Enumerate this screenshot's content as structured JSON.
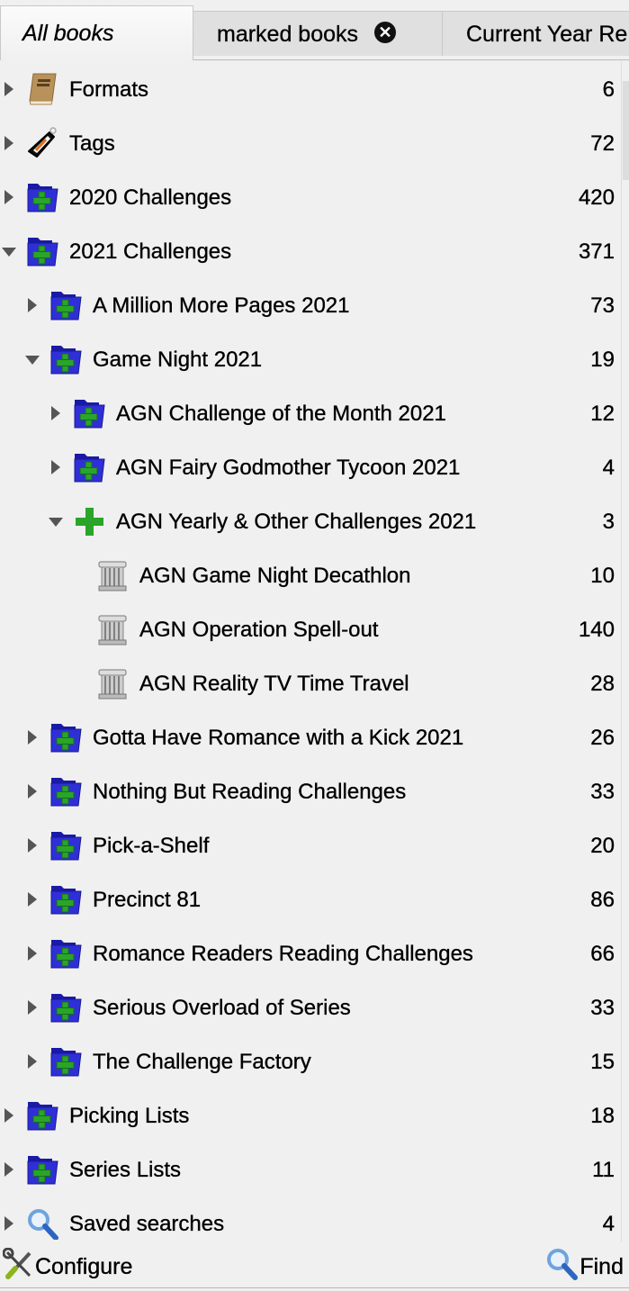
{
  "tabs": [
    {
      "label": "All books",
      "active": true
    },
    {
      "label": "marked books",
      "closable": true
    },
    {
      "label": "Current Year Re"
    }
  ],
  "tree": [
    {
      "label": "Formats",
      "count": "6",
      "level": 0,
      "state": "closed",
      "icon": "book-icon"
    },
    {
      "label": "Tags",
      "count": "72",
      "level": 0,
      "state": "closed",
      "icon": "tag-icon"
    },
    {
      "label": "2020 Challenges",
      "count": "420",
      "level": 0,
      "state": "closed",
      "icon": "folder-plus-icon"
    },
    {
      "label": "2021 Challenges",
      "count": "371",
      "level": 0,
      "state": "open",
      "icon": "folder-plus-icon"
    },
    {
      "label": "A Million More Pages 2021",
      "count": "73",
      "level": 1,
      "state": "closed",
      "icon": "folder-plus-icon"
    },
    {
      "label": "Game Night 2021",
      "count": "19",
      "level": 1,
      "state": "open",
      "icon": "folder-plus-icon"
    },
    {
      "label": "AGN Challenge of the Month 2021",
      "count": "12",
      "level": 2,
      "state": "closed",
      "icon": "folder-plus-icon"
    },
    {
      "label": "AGN Fairy Godmother Tycoon 2021",
      "count": "4",
      "level": 2,
      "state": "closed",
      "icon": "folder-plus-icon"
    },
    {
      "label": "AGN Yearly & Other Challenges 2021",
      "count": "3",
      "level": 2,
      "state": "open",
      "icon": "plus-icon"
    },
    {
      "label": "AGN Game Night Decathlon",
      "count": "10",
      "level": 3,
      "state": "leaf",
      "icon": "pillar-icon"
    },
    {
      "label": "AGN Operation Spell-out",
      "count": "140",
      "level": 3,
      "state": "leaf",
      "icon": "pillar-icon"
    },
    {
      "label": "AGN Reality TV Time Travel",
      "count": "28",
      "level": 3,
      "state": "leaf",
      "icon": "pillar-icon"
    },
    {
      "label": "Gotta Have Romance with a Kick 2021",
      "count": "26",
      "level": 1,
      "state": "closed",
      "icon": "folder-plus-icon"
    },
    {
      "label": "Nothing But Reading Challenges",
      "count": "33",
      "level": 1,
      "state": "closed",
      "icon": "folder-plus-icon"
    },
    {
      "label": "Pick-a-Shelf",
      "count": "20",
      "level": 1,
      "state": "closed",
      "icon": "folder-plus-icon"
    },
    {
      "label": "Precinct 81",
      "count": "86",
      "level": 1,
      "state": "closed",
      "icon": "folder-plus-icon"
    },
    {
      "label": "Romance Readers Reading Challenges",
      "count": "66",
      "level": 1,
      "state": "closed",
      "icon": "folder-plus-icon"
    },
    {
      "label": "Serious Overload of Series",
      "count": "33",
      "level": 1,
      "state": "closed",
      "icon": "folder-plus-icon"
    },
    {
      "label": "The Challenge Factory",
      "count": "15",
      "level": 1,
      "state": "closed",
      "icon": "folder-plus-icon"
    },
    {
      "label": "Picking Lists",
      "count": "18",
      "level": 0,
      "state": "closed",
      "icon": "folder-plus-icon"
    },
    {
      "label": "Series Lists",
      "count": "11",
      "level": 0,
      "state": "closed",
      "icon": "folder-plus-icon"
    },
    {
      "label": "Saved searches",
      "count": "4",
      "level": 0,
      "state": "closed",
      "icon": "search-icon"
    }
  ],
  "footer": {
    "configure": "Configure",
    "find": "Find"
  }
}
